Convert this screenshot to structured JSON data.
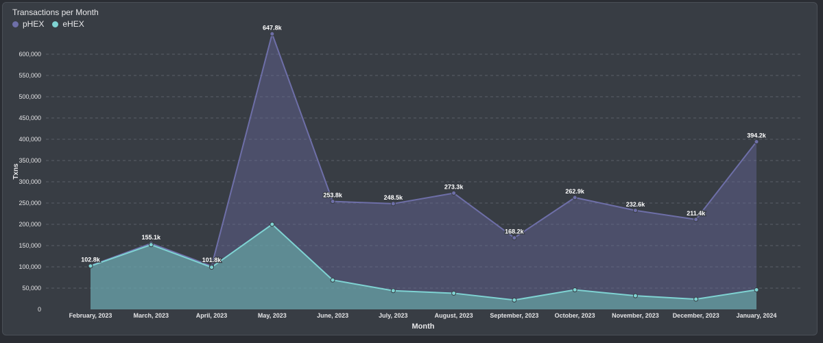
{
  "chart_data": {
    "type": "area",
    "title": "Transactions per Month",
    "xlabel": "Month",
    "ylabel": "Txns",
    "ylim": [
      0,
      650000
    ],
    "yticks": [
      0,
      50000,
      100000,
      150000,
      200000,
      250000,
      300000,
      350000,
      400000,
      450000,
      500000,
      550000,
      600000
    ],
    "ytick_labels": [
      "0",
      "50,000",
      "100,000",
      "150,000",
      "200,000",
      "250,000",
      "300,000",
      "350,000",
      "400,000",
      "450,000",
      "500,000",
      "550,000",
      "600,000"
    ],
    "grid": true,
    "legend_position": "top-left",
    "categories": [
      "February, 2023",
      "March, 2023",
      "April, 2023",
      "May, 2023",
      "June, 2023",
      "July, 2023",
      "August, 2023",
      "September, 2023",
      "October, 2023",
      "November, 2023",
      "December, 2023",
      "January, 2024"
    ],
    "series": [
      {
        "name": "pHEX",
        "color": "#6e6fa8",
        "values": [
          102800,
          155100,
          101800,
          647800,
          253800,
          248500,
          273300,
          168200,
          262900,
          232600,
          211400,
          394200
        ],
        "data_labels": [
          "102.8k",
          "155.1k",
          "101.8k",
          "647.8k",
          "253.8k",
          "248.5k",
          "273.3k",
          "168.2k",
          "262.9k",
          "232.6k",
          "211.4k",
          "394.2k"
        ]
      },
      {
        "name": "eHEX",
        "color": "#7fd3d3",
        "values": [
          102000,
          152000,
          99000,
          200000,
          69000,
          44000,
          38000,
          22000,
          46000,
          32000,
          24000,
          46000
        ],
        "data_labels": []
      }
    ]
  }
}
